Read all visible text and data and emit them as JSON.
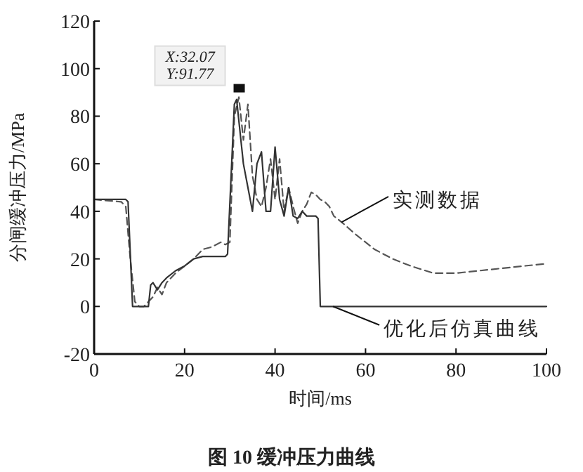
{
  "chart_data": {
    "type": "line",
    "title": "图 10 缓冲压力曲线",
    "xlabel": "时间/ms",
    "ylabel": "分闸缓冲压力/MPa",
    "xlim": [
      0,
      100
    ],
    "xticks": [
      0,
      20,
      40,
      60,
      80,
      100
    ],
    "ylim": [
      -20,
      120
    ],
    "yticks": [
      -20,
      0,
      20,
      40,
      60,
      80,
      100,
      120
    ],
    "grid": false,
    "annotations": [
      {
        "text": "X:32.07\nY:91.77",
        "x": 32.07,
        "y": 91.77
      }
    ],
    "series": [
      {
        "name": "实测数据",
        "color": "#555555",
        "line_style": "dashed",
        "x": [
          0,
          6,
          7,
          8,
          9,
          10,
          11,
          12,
          13,
          14,
          15,
          16,
          18,
          20,
          22,
          24,
          26,
          28,
          29,
          30,
          31,
          32,
          33,
          34,
          35,
          36,
          37,
          38,
          39,
          40,
          41,
          42,
          43,
          44,
          45,
          46,
          47,
          48,
          49,
          50,
          51,
          52,
          53,
          55,
          58,
          62,
          66,
          70,
          75,
          80,
          85,
          90,
          95,
          100
        ],
        "values": [
          45,
          44,
          42,
          20,
          2,
          0,
          0,
          2,
          4,
          8,
          5,
          10,
          14,
          17,
          20,
          24,
          25,
          27,
          26,
          27,
          80,
          88,
          70,
          85,
          55,
          45,
          42,
          50,
          62,
          45,
          62,
          40,
          50,
          42,
          35,
          40,
          43,
          48,
          47,
          45,
          44,
          42,
          38,
          35,
          30,
          24,
          20,
          17,
          14,
          14,
          15,
          16,
          17,
          18
        ]
      },
      {
        "name": "优化后仿真曲线",
        "color": "#333333",
        "line_style": "solid",
        "x": [
          0,
          7,
          7.5,
          8.5,
          12,
          12.5,
          13,
          14,
          15,
          16,
          18,
          20,
          22,
          24,
          29,
          29.5,
          31,
          31.5,
          33,
          34,
          35,
          36,
          37,
          38,
          39,
          40,
          41,
          42,
          43,
          44,
          45,
          46,
          47,
          49,
          49.5,
          50,
          100
        ],
        "values": [
          45,
          45,
          44,
          0,
          0,
          9,
          10,
          7,
          10,
          12,
          15,
          17,
          20,
          21,
          21,
          22,
          85,
          87,
          60,
          50,
          40,
          60,
          65,
          40,
          40,
          67,
          45,
          38,
          50,
          38,
          37,
          40,
          38,
          38,
          37,
          0,
          0
        ]
      }
    ]
  }
}
